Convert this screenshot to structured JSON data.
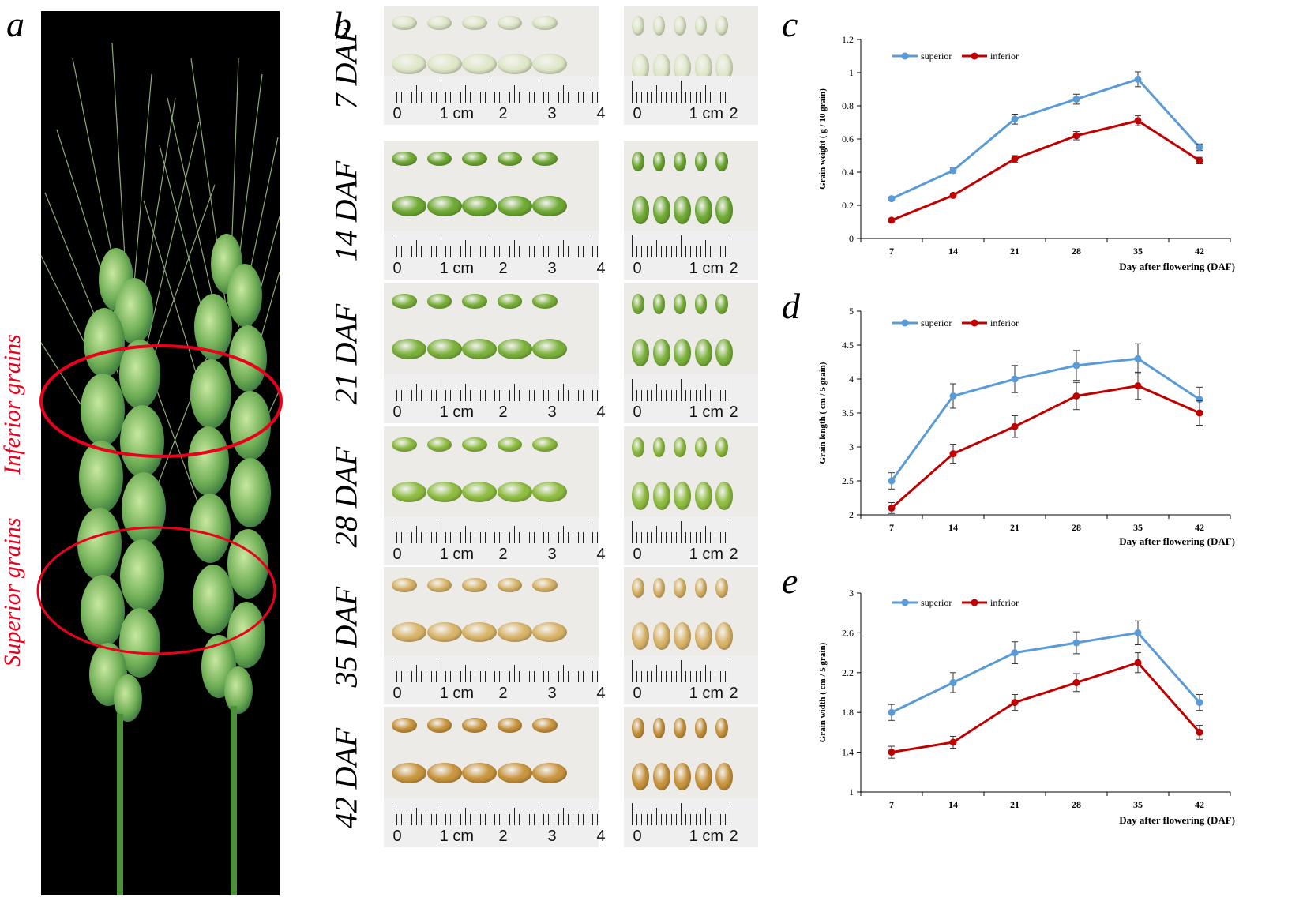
{
  "panel_labels": {
    "a": "a",
    "b": "b",
    "c": "c",
    "d": "d",
    "e": "e"
  },
  "panel_a": {
    "inferior_label": "Inferior grains",
    "superior_label": "Superior grains",
    "oval_color": "#e8001c"
  },
  "panel_b": {
    "rows": [
      {
        "label": "7 DAF",
        "color": "#dfe8c8",
        "left_ruler": [
          "0",
          "1 cm",
          "2",
          "3",
          "4"
        ],
        "right_ruler": [
          "0",
          "1 cm",
          "2"
        ]
      },
      {
        "label": "14 DAF",
        "color": "#6faa34",
        "left_ruler": [
          "0",
          "1 cm",
          "2",
          "3",
          "4"
        ],
        "right_ruler": [
          "0",
          "1 cm",
          "2"
        ]
      },
      {
        "label": "21 DAF",
        "color": "#7cb23c",
        "left_ruler": [
          "0",
          "1 cm",
          "2",
          "3",
          "4"
        ],
        "right_ruler": [
          "0",
          "1 cm",
          "2"
        ]
      },
      {
        "label": "28 DAF",
        "color": "#8fbd42",
        "left_ruler": [
          "0",
          "1 cm",
          "2",
          "3",
          "4"
        ],
        "right_ruler": [
          "0",
          "1 cm",
          "2"
        ]
      },
      {
        "label": "35 DAF",
        "color": "#d9b56a",
        "left_ruler": [
          "0",
          "1 cm",
          "2",
          "3",
          "4"
        ],
        "right_ruler": [
          "0",
          "1 cm",
          "2"
        ]
      },
      {
        "label": "42 DAF",
        "color": "#c9953f",
        "left_ruler": [
          "0",
          "1 cm",
          "2",
          "3",
          "4"
        ],
        "right_ruler": [
          "0",
          "1 cm",
          "2"
        ]
      }
    ]
  },
  "chart_data": [
    {
      "id": "c",
      "type": "line",
      "ylabel": "Grain weight ( g / 10 grain)",
      "xlabel": "Day after flowering (DAF)",
      "categories": [
        "7",
        "14",
        "21",
        "28",
        "35",
        "42"
      ],
      "ylim": [
        0,
        1.2
      ],
      "yticks": [
        "0",
        "0.2",
        "0.4",
        "0.6",
        "0.8",
        "1",
        "1.2"
      ],
      "series": [
        {
          "name": "superior",
          "color": "#5b9bd5",
          "values": [
            0.24,
            0.41,
            0.72,
            0.84,
            0.96,
            0.55
          ],
          "errors": [
            0.01,
            0.015,
            0.03,
            0.03,
            0.045,
            0.02
          ]
        },
        {
          "name": "inferior",
          "color": "#c00000",
          "values": [
            0.11,
            0.26,
            0.48,
            0.62,
            0.71,
            0.47
          ],
          "errors": [
            0.01,
            0.01,
            0.02,
            0.025,
            0.03,
            0.02
          ]
        }
      ]
    },
    {
      "id": "d",
      "type": "line",
      "ylabel": "Grain length ( cm / 5 grain)",
      "xlabel": "Day after flowering (DAF)",
      "categories": [
        "7",
        "14",
        "21",
        "28",
        "35",
        "42"
      ],
      "ylim": [
        2,
        5
      ],
      "yticks": [
        "2",
        "2.5",
        "3",
        "3.5",
        "4",
        "4.5",
        "5"
      ],
      "series": [
        {
          "name": "superior",
          "color": "#5b9bd5",
          "values": [
            2.5,
            3.75,
            4.0,
            4.2,
            4.3,
            3.7
          ],
          "errors": [
            0.12,
            0.18,
            0.2,
            0.22,
            0.22,
            0.18
          ]
        },
        {
          "name": "inferior",
          "color": "#c00000",
          "values": [
            2.1,
            2.9,
            3.3,
            3.75,
            3.9,
            3.5
          ],
          "errors": [
            0.08,
            0.14,
            0.16,
            0.2,
            0.2,
            0.18
          ]
        }
      ]
    },
    {
      "id": "e",
      "type": "line",
      "ylabel": "Grain width ( cm / 5 grain)",
      "xlabel": "Day after flowering (DAF)",
      "categories": [
        "7",
        "14",
        "21",
        "28",
        "35",
        "42"
      ],
      "ylim": [
        1,
        3
      ],
      "yticks": [
        "1",
        "1.4",
        "1.8",
        "2.2",
        "2.6",
        "3"
      ],
      "series": [
        {
          "name": "superior",
          "color": "#5b9bd5",
          "values": [
            1.8,
            2.1,
            2.4,
            2.5,
            2.6,
            1.9
          ],
          "errors": [
            0.08,
            0.1,
            0.11,
            0.11,
            0.12,
            0.08
          ]
        },
        {
          "name": "inferior",
          "color": "#c00000",
          "values": [
            1.4,
            1.5,
            1.9,
            2.1,
            2.3,
            1.6
          ],
          "errors": [
            0.06,
            0.06,
            0.08,
            0.09,
            0.1,
            0.07
          ]
        }
      ]
    }
  ]
}
